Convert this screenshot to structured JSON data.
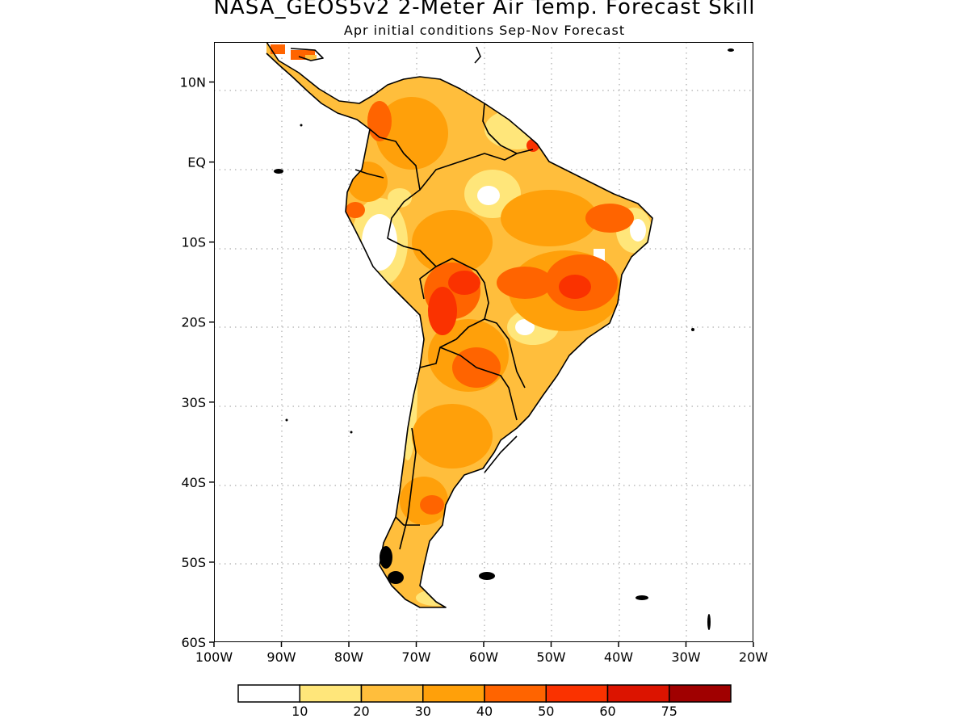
{
  "title": "NASA_GEOS5v2 2-Meter Air Temp. Forecast Skill",
  "subtitle": "Apr initial conditions  Sep-Nov Forecast",
  "map": {
    "lon_range": [
      -100,
      -20
    ],
    "lat_range": [
      -60,
      15
    ],
    "lat_ticks": [
      {
        "value": 10,
        "label": "10N"
      },
      {
        "value": 0,
        "label": "EQ"
      },
      {
        "value": -10,
        "label": "10S"
      },
      {
        "value": -20,
        "label": "20S"
      },
      {
        "value": -30,
        "label": "30S"
      },
      {
        "value": -40,
        "label": "40S"
      },
      {
        "value": -50,
        "label": "50S"
      },
      {
        "value": -60,
        "label": "60S"
      }
    ],
    "lon_ticks": [
      {
        "value": -100,
        "label": "100W"
      },
      {
        "value": -90,
        "label": "90W"
      },
      {
        "value": -80,
        "label": "80W"
      },
      {
        "value": -70,
        "label": "70W"
      },
      {
        "value": -60,
        "label": "60W"
      },
      {
        "value": -50,
        "label": "50W"
      },
      {
        "value": -40,
        "label": "40W"
      },
      {
        "value": -30,
        "label": "30W"
      },
      {
        "value": -20,
        "label": "20W"
      }
    ],
    "grid": "dotted"
  },
  "colorbar": {
    "colors": [
      "#ffffff",
      "#ffe67a",
      "#ffbe3c",
      "#ffa00a",
      "#ff6400",
      "#fa3200",
      "#dc1400",
      "#a00000"
    ],
    "labels": [
      "10",
      "20",
      "30",
      "40",
      "50",
      "60",
      "75"
    ]
  }
}
